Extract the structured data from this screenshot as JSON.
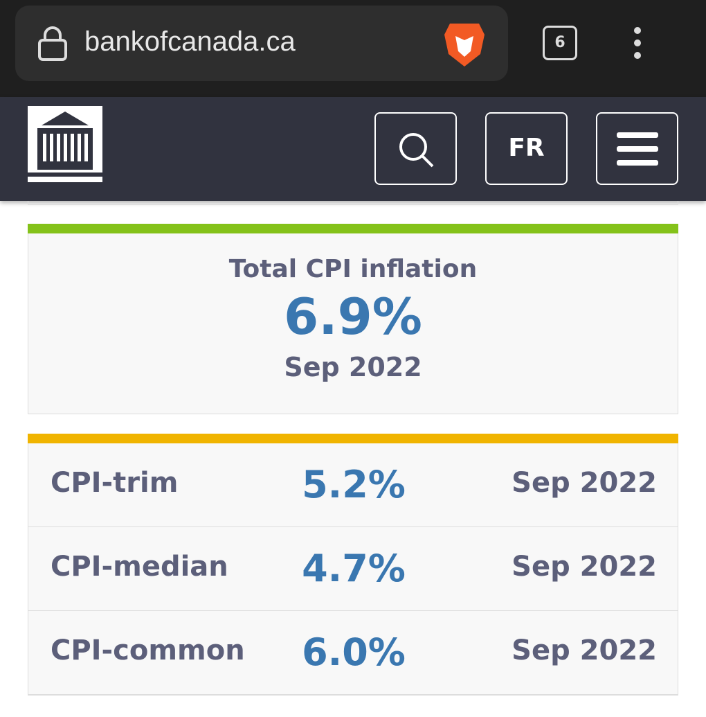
{
  "browser": {
    "url": "bankofcanada.ca",
    "tab_count": "6"
  },
  "header": {
    "language_button": "FR"
  },
  "total_cpi": {
    "title": "Total CPI inflation",
    "value": "6.9%",
    "date": "Sep 2022"
  },
  "table": {
    "rows": [
      [
        "CPI-trim",
        "5.2%",
        "Sep 2022"
      ],
      [
        "CPI-median",
        "4.7%",
        "Sep 2022"
      ],
      [
        "CPI-common",
        "6.0%",
        "Sep 2022"
      ]
    ]
  }
}
